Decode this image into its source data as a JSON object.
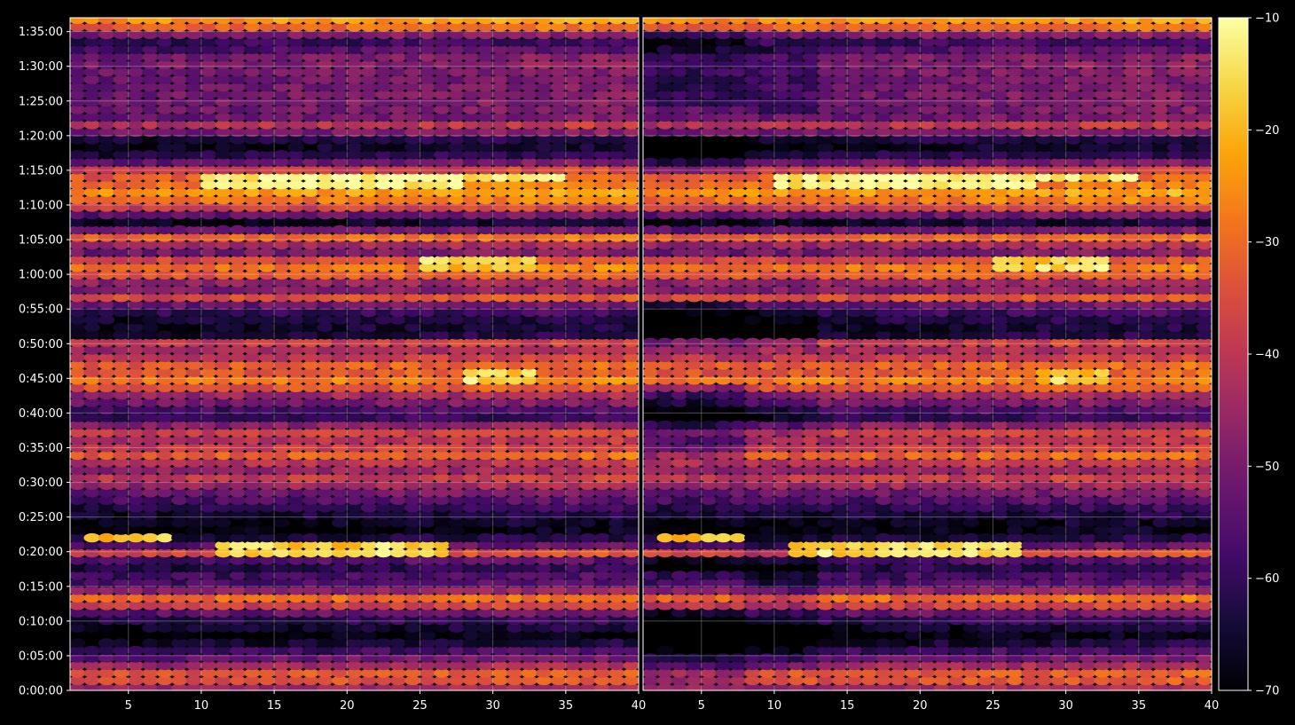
{
  "chart_data": {
    "type": "heatmap",
    "title": "",
    "xlabel": "",
    "ylabel": "",
    "colormap": "inferno",
    "background_color": "#000000",
    "text_color": "#ffffff",
    "grid": true,
    "panels": [
      {
        "name": "left panel",
        "xlim": [
          1,
          40
        ],
        "x_ticks": [
          5,
          10,
          15,
          20,
          25,
          30,
          35,
          40
        ],
        "x_tick_labels": [
          "5",
          "10",
          "15",
          "20",
          "25",
          "30",
          "35",
          "40"
        ]
      },
      {
        "name": "right panel",
        "xlim": [
          1,
          40
        ],
        "x_ticks": [
          5,
          10,
          15,
          20,
          25,
          30,
          35,
          40
        ],
        "x_tick_labels": [
          "5",
          "10",
          "15",
          "20",
          "25",
          "30",
          "35",
          "40"
        ]
      }
    ],
    "x_columns": 39,
    "ylim_seconds": [
      0,
      5820
    ],
    "y_ticks_seconds": [
      0,
      300,
      600,
      900,
      1200,
      1500,
      1800,
      2100,
      2400,
      2700,
      3000,
      3300,
      3600,
      3900,
      4200,
      4500,
      4800,
      5100,
      5400,
      5700
    ],
    "y_tick_labels": [
      "0:00:00",
      "0:05:00",
      "0:10:00",
      "0:15:00",
      "0:20:00",
      "0:25:00",
      "0:30:00",
      "0:35:00",
      "0:40:00",
      "0:45:00",
      "0:50:00",
      "0:55:00",
      "1:00:00",
      "1:05:00",
      "1:10:00",
      "1:15:00",
      "1:20:00",
      "1:25:00",
      "1:30:00",
      "1:35:00"
    ],
    "row_step_seconds": 65,
    "colorbar": {
      "range": [
        -70,
        -10
      ],
      "ticks": [
        -70,
        -60,
        -50,
        -40,
        -30,
        -20,
        -10
      ],
      "tick_labels": [
        "−70",
        "−60",
        "−50",
        "−40",
        "−30",
        "−20",
        "−10"
      ]
    },
    "bands_time_level_dB": [
      [
        0,
        -48
      ],
      [
        120,
        -28
      ],
      [
        240,
        -48
      ],
      [
        300,
        -54
      ],
      [
        360,
        -60
      ],
      [
        420,
        -66
      ],
      [
        480,
        -70
      ],
      [
        560,
        -64
      ],
      [
        640,
        -58
      ],
      [
        700,
        -48
      ],
      [
        780,
        -24
      ],
      [
        860,
        -46
      ],
      [
        920,
        -56
      ],
      [
        1000,
        -58
      ],
      [
        1100,
        -64
      ],
      [
        1200,
        -32
      ],
      [
        1260,
        -56
      ],
      [
        1300,
        -62
      ],
      [
        1400,
        -70
      ],
      [
        1560,
        -62
      ],
      [
        1640,
        -56
      ],
      [
        1760,
        -48
      ],
      [
        1820,
        -36
      ],
      [
        1900,
        -46
      ],
      [
        1980,
        -40
      ],
      [
        2040,
        -30
      ],
      [
        2100,
        -38
      ],
      [
        2160,
        -42
      ],
      [
        2220,
        -36
      ],
      [
        2280,
        -44
      ],
      [
        2350,
        -60
      ],
      [
        2400,
        -60
      ],
      [
        2450,
        -54
      ],
      [
        2560,
        -44
      ],
      [
        2640,
        -30
      ],
      [
        2700,
        -26
      ],
      [
        2760,
        -34
      ],
      [
        2840,
        -30
      ],
      [
        2920,
        -48
      ],
      [
        3000,
        -34
      ],
      [
        3080,
        -66
      ],
      [
        3200,
        -64
      ],
      [
        3320,
        -56
      ],
      [
        3410,
        -32
      ],
      [
        3470,
        -50
      ],
      [
        3560,
        -44
      ],
      [
        3620,
        -24
      ],
      [
        3720,
        -34
      ],
      [
        3790,
        -50
      ],
      [
        3860,
        -44
      ],
      [
        3930,
        -28
      ],
      [
        3990,
        -54
      ],
      [
        4060,
        -68
      ],
      [
        4160,
        -40
      ],
      [
        4260,
        -26
      ],
      [
        4330,
        -22
      ],
      [
        4390,
        -30
      ],
      [
        4460,
        -32
      ],
      [
        4530,
        -40
      ],
      [
        4600,
        -60
      ],
      [
        4700,
        -66
      ],
      [
        4800,
        -62
      ],
      [
        4870,
        -34
      ],
      [
        4940,
        -52
      ],
      [
        5060,
        -50
      ],
      [
        5200,
        -50
      ],
      [
        5260,
        -52
      ],
      [
        5360,
        -50
      ],
      [
        5440,
        -48
      ],
      [
        5520,
        -52
      ],
      [
        5560,
        -58
      ],
      [
        5640,
        -60
      ],
      [
        5760,
        -24
      ],
      [
        5820,
        -24
      ]
    ],
    "right_panel_dim_zones": [
      {
        "x_range": [
          1,
          8
        ],
        "time_range": [
          2000,
          2650
        ],
        "dB_offset": -12
      },
      {
        "x_range": [
          1,
          8
        ],
        "time_range": [
          2950,
          3360
        ],
        "dB_offset": -10
      },
      {
        "x_range": [
          1,
          8
        ],
        "time_range": [
          4500,
          4780
        ],
        "dB_offset": -10
      },
      {
        "x_range": [
          1,
          8
        ],
        "time_range": [
          5060,
          5680
        ],
        "dB_offset": -8
      },
      {
        "x_range": [
          1,
          8
        ],
        "time_range": [
          60,
          700
        ],
        "dB_offset": -10
      },
      {
        "x_range": [
          1,
          8
        ],
        "time_range": [
          1000,
          1150
        ],
        "dB_offset": -10
      },
      {
        "x_range": [
          8,
          13
        ],
        "time_range": [
          200,
          1300
        ],
        "dB_offset": -6
      },
      {
        "x_range": [
          8,
          13
        ],
        "time_range": [
          2200,
          2600
        ],
        "dB_offset": -6
      },
      {
        "x_range": [
          8,
          13
        ],
        "time_range": [
          2950,
          3300
        ],
        "dB_offset": -6
      },
      {
        "x_range": [
          8,
          13
        ],
        "time_range": [
          5000,
          5600
        ],
        "dB_offset": -6
      }
    ],
    "bright_spots": [
      {
        "x_range": [
          10,
          28
        ],
        "time_range": [
          4360,
          4440
        ],
        "level_dB": -12
      },
      {
        "x_range": [
          20,
          35
        ],
        "time_range": [
          4440,
          4480
        ],
        "level_dB": -14
      },
      {
        "x_range": [
          25,
          33
        ],
        "time_range": [
          3660,
          3760
        ],
        "level_dB": -16
      },
      {
        "x_range": [
          11,
          27
        ],
        "time_range": [
          1180,
          1280
        ],
        "level_dB": -15
      },
      {
        "x_range": [
          28,
          33
        ],
        "time_range": [
          2660,
          2760
        ],
        "level_dB": -16
      },
      {
        "x_range": [
          2,
          8
        ],
        "time_range": [
          1290,
          1340
        ],
        "level_dB": -18
      }
    ]
  }
}
